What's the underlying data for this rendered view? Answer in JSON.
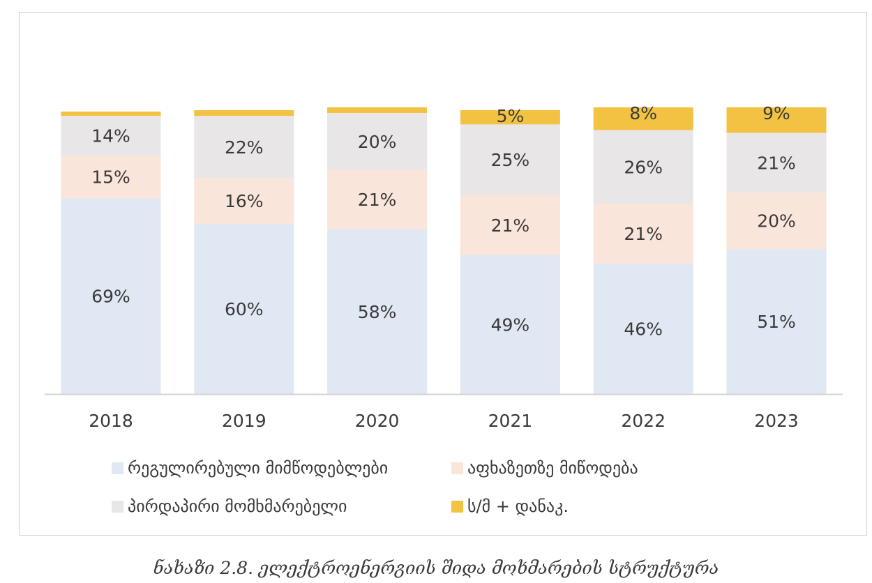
{
  "chart_data": {
    "type": "bar",
    "stacked": true,
    "categories": [
      "2018",
      "2019",
      "2020",
      "2021",
      "2022",
      "2023"
    ],
    "series": [
      {
        "name": "რეგულირებული მიმწოდებლები",
        "color": "#dfe8f3",
        "values": [
          69,
          60,
          58,
          49,
          46,
          51
        ],
        "labels": [
          "69%",
          "60%",
          "58%",
          "49%",
          "46%",
          "51%"
        ]
      },
      {
        "name": "აფხაზეთზე მიწოდება",
        "color": "#fae5da",
        "values": [
          15,
          16,
          21,
          21,
          21,
          20
        ],
        "labels": [
          "15%",
          "16%",
          "21%",
          "21%",
          "21%",
          "20%"
        ]
      },
      {
        "name": "პირდაპირი მომხმარებელი",
        "color": "#e8e6e7",
        "values": [
          14,
          22,
          20,
          25,
          26,
          21
        ],
        "labels": [
          "14%",
          "22%",
          "20%",
          "25%",
          "26%",
          "21%"
        ]
      },
      {
        "name": "ს/მ + დანაკ.",
        "color": "#f3c242",
        "values": [
          1.5,
          2,
          2,
          5,
          8,
          9
        ],
        "labels": [
          "",
          "",
          "",
          "5%",
          "8%",
          "9%"
        ]
      }
    ],
    "grid": false,
    "legend_position": "bottom"
  },
  "legend": [
    {
      "label": "რეგულირებული მიმწოდებლები",
      "color": "#dfe8f3"
    },
    {
      "label": "აფხაზეთზე მიწოდება",
      "color": "#fae5da"
    },
    {
      "label": "პირდაპირი მომხმარებელი",
      "color": "#e8e6e7"
    },
    {
      "label": "ს/მ + დანაკ.",
      "color": "#f3c242"
    }
  ],
  "caption": "ნახაზი 2.8. ელექტროენერგიის შიდა მოხმარების სტრუქტურა"
}
